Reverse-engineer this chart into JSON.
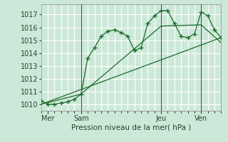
{
  "bg_color": "#cce8d8",
  "grid_color": "#ffffff",
  "line_color": "#1a6b2a",
  "dark_line_color": "#1a5520",
  "xlabel": "Pression niveau de la mer( hPa )",
  "ylim": [
    1009.5,
    1017.8
  ],
  "xlim": [
    0,
    27
  ],
  "yticks": [
    1010,
    1011,
    1012,
    1013,
    1014,
    1015,
    1016,
    1017
  ],
  "day_labels": [
    "Mer",
    "Sam",
    "Jeu",
    "Ven"
  ],
  "day_positions": [
    1,
    6,
    18,
    24
  ],
  "vline_positions": [
    6,
    18,
    24
  ],
  "line1_x": [
    0,
    1,
    2,
    3,
    4,
    5,
    6,
    7,
    8,
    9,
    10,
    11,
    12,
    13,
    14,
    15,
    16,
    17,
    18,
    19,
    20,
    21,
    22,
    23,
    24,
    25,
    26,
    27
  ],
  "line1_y": [
    1010.3,
    1010.0,
    1010.0,
    1010.1,
    1010.2,
    1010.4,
    1010.8,
    1013.6,
    1014.4,
    1015.3,
    1015.7,
    1015.8,
    1015.6,
    1015.3,
    1014.2,
    1014.4,
    1016.3,
    1016.9,
    1017.3,
    1017.3,
    1016.3,
    1015.3,
    1015.2,
    1015.5,
    1017.2,
    1016.9,
    1015.8,
    1015.2
  ],
  "line2_x": [
    0,
    6,
    18,
    24,
    27
  ],
  "line2_y": [
    1010.0,
    1010.8,
    1016.1,
    1016.2,
    1014.8
  ],
  "line3_x": [
    0,
    27
  ],
  "line3_y": [
    1010.0,
    1015.2
  ],
  "minor_xticks": [
    0,
    1,
    2,
    3,
    4,
    5,
    6,
    7,
    8,
    9,
    10,
    11,
    12,
    13,
    14,
    15,
    16,
    17,
    18,
    19,
    20,
    21,
    22,
    23,
    24,
    25,
    26,
    27
  ]
}
